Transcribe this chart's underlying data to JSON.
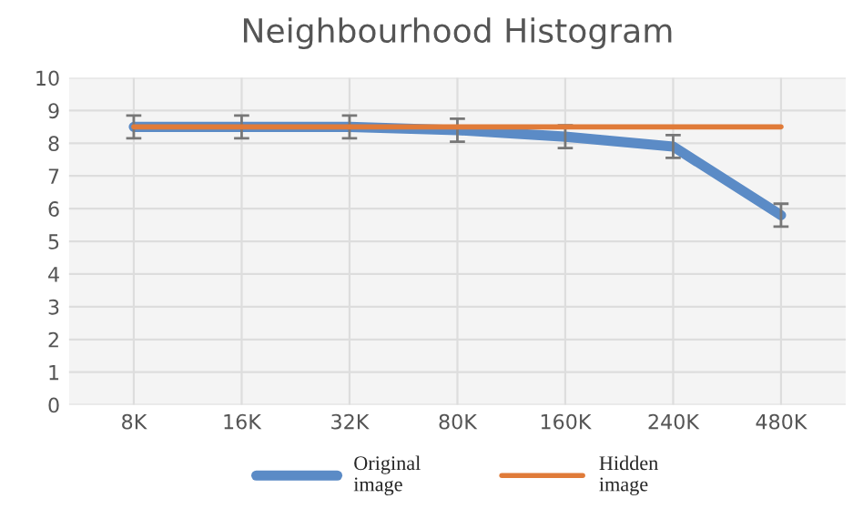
{
  "chart_data": {
    "type": "line",
    "title": "Neighbourhood Histogram",
    "categories": [
      "8K",
      "16K",
      "32K",
      "80K",
      "160K",
      "240K",
      "480K"
    ],
    "series": [
      {
        "name": "Original\nimage",
        "color": "#5b8bc6",
        "values": [
          8.5,
          8.5,
          8.5,
          8.4,
          8.2,
          7.9,
          5.8
        ],
        "errors": [
          0.35,
          0.35,
          0.35,
          0.35,
          0.35,
          0.35,
          0.35
        ]
      },
      {
        "name": "Hidden\nimage",
        "color": "#e07b39",
        "values": [
          8.5,
          8.5,
          8.5,
          8.5,
          8.5,
          8.5,
          8.5
        ]
      }
    ],
    "ylim": [
      0,
      10
    ],
    "yticks": [
      0,
      1,
      2,
      3,
      4,
      5,
      6,
      7,
      8,
      9,
      10
    ],
    "grid": true,
    "legend": "bottom",
    "marker": "none",
    "line_style": "solid"
  }
}
